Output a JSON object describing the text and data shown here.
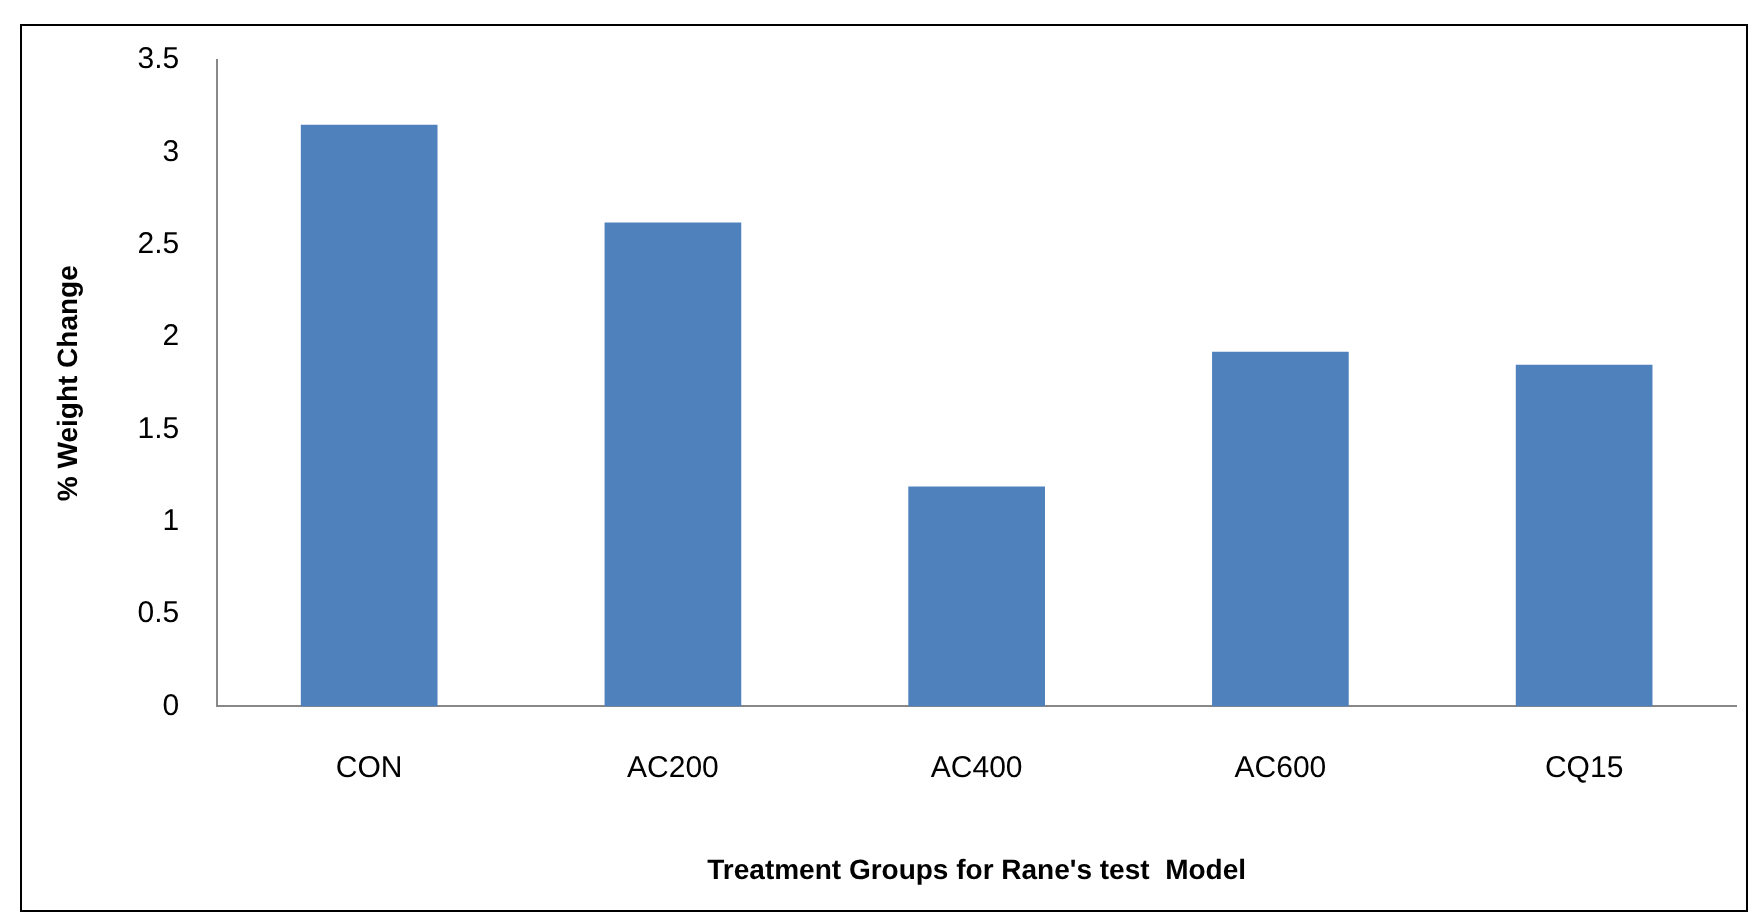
{
  "chart_data": {
    "type": "bar",
    "xlabel": "Treatment Groups for Rane's test  Model",
    "ylabel": "% Weight Change",
    "categories": [
      "CON",
      "AC200",
      "AC400",
      "AC600",
      "CQ15"
    ],
    "values": [
      3.15,
      2.62,
      1.19,
      1.92,
      1.85
    ],
    "color": "#4f81bd",
    "ylim": [
      0,
      3.5
    ],
    "yticks": [
      0,
      0.5,
      1,
      1.5,
      2,
      2.5,
      3,
      3.5
    ],
    "grid": false,
    "legend": false
  }
}
